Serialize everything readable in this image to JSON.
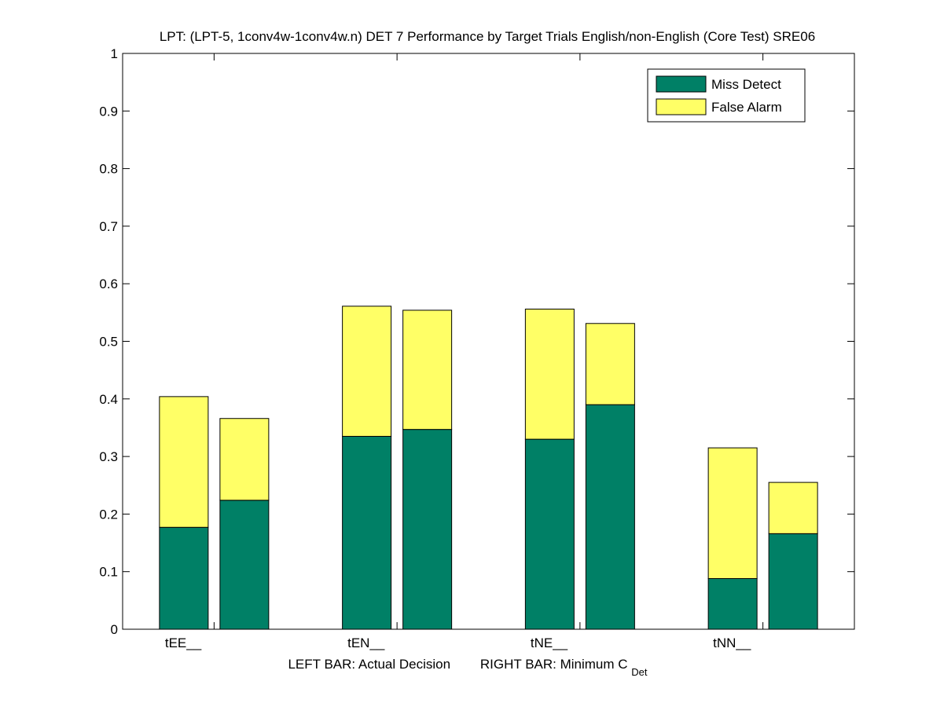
{
  "chart_data": {
    "type": "bar",
    "stacked": true,
    "title": "LPT: (LPT-5, 1conv4w-1conv4w.n) DET 7 Performance by Target Trials English/non-English (Core Test) SRE06",
    "xlabel": {
      "left": "LEFT BAR: Actual Decision",
      "right_prefix": "RIGHT BAR: Minimum C",
      "right_sub": "Det"
    },
    "ylabel": "",
    "ylim": [
      0,
      1
    ],
    "yticks": [
      0,
      0.1,
      0.2,
      0.3,
      0.4,
      0.5,
      0.6,
      0.7,
      0.8,
      0.9,
      1
    ],
    "ytick_labels": [
      "0",
      "0.1",
      "0.2",
      "0.3",
      "0.4",
      "0.5",
      "0.6",
      "0.7",
      "0.8",
      "0.9",
      "1"
    ],
    "categories": [
      "tEE__",
      "tEN__",
      "tNE__",
      "tNN__"
    ],
    "bar_roles": [
      "Actual Decision",
      "Minimum CDet"
    ],
    "series": [
      {
        "name": "Miss Detect",
        "color": "#008066",
        "actual": [
          0.177,
          0.335,
          0.33,
          0.088
        ],
        "minimum": [
          0.224,
          0.347,
          0.39,
          0.166
        ]
      },
      {
        "name": "False Alarm",
        "color": "#ffff66",
        "actual": [
          0.227,
          0.226,
          0.226,
          0.227
        ],
        "minimum": [
          0.142,
          0.207,
          0.141,
          0.089
        ]
      }
    ],
    "legend": {
      "placement": "top-right",
      "entries": [
        "Miss Detect",
        "False Alarm"
      ]
    },
    "grid": false
  }
}
